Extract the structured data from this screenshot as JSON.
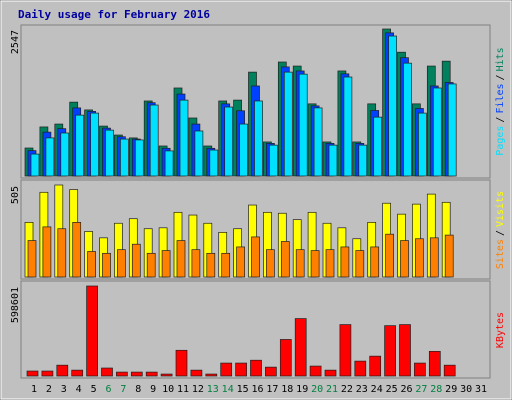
{
  "chart_data": [
    {
      "type": "bar",
      "title": "Daily usage for February 2016",
      "ylim": [
        0,
        2547
      ],
      "yticks": [
        2547
      ],
      "legend_separator": "/",
      "series": [
        {
          "name": "Hits",
          "color": "#00805c",
          "values": [
            485,
            850,
            900,
            1280,
            1145,
            865,
            710,
            660,
            1300,
            520,
            1525,
            1005,
            520,
            1300,
            1315,
            1800,
            590,
            1975,
            1905,
            1250,
            590,
            1820,
            590,
            1250,
            2547,
            2145,
            1250,
            1905,
            1990,
            null,
            null
          ]
        },
        {
          "name": "Files",
          "color": "#0040ff",
          "values": [
            440,
            760,
            820,
            1180,
            1120,
            830,
            680,
            640,
            1270,
            480,
            1420,
            900,
            480,
            1250,
            1130,
            1560,
            565,
            1890,
            1820,
            1215,
            565,
            1770,
            565,
            1135,
            2480,
            2050,
            1170,
            1560,
            1620,
            null,
            null
          ]
        },
        {
          "name": "Pages",
          "color": "#00e0ff",
          "values": [
            380,
            660,
            745,
            1055,
            1090,
            795,
            640,
            625,
            1230,
            435,
            1315,
            780,
            450,
            1195,
            900,
            1300,
            535,
            1800,
            1765,
            1180,
            535,
            1715,
            535,
            1020,
            2425,
            1955,
            1090,
            1525,
            1595,
            null,
            null
          ]
        }
      ]
    },
    {
      "type": "bar",
      "ylim": [
        0,
        505
      ],
      "yticks": [
        505
      ],
      "legend_separator": "/",
      "series": [
        {
          "name": "Visits",
          "color": "#ffff00",
          "values": [
            300,
            465,
            505,
            480,
            250,
            215,
            295,
            320,
            265,
            270,
            355,
            340,
            295,
            245,
            265,
            395,
            355,
            350,
            315,
            355,
            295,
            270,
            210,
            300,
            405,
            345,
            400,
            455,
            410,
            null,
            null
          ]
        },
        {
          "name": "Sites",
          "color": "#ff8000",
          "values": [
            200,
            275,
            265,
            300,
            140,
            130,
            150,
            180,
            130,
            145,
            200,
            150,
            130,
            130,
            165,
            220,
            150,
            195,
            150,
            145,
            150,
            165,
            145,
            165,
            235,
            200,
            210,
            215,
            230,
            null,
            null
          ]
        }
      ]
    },
    {
      "type": "bar",
      "ylim": [
        0,
        598601
      ],
      "yticks": [
        598601
      ],
      "categories": [
        "1",
        "2",
        "3",
        "4",
        "5",
        "6",
        "7",
        "8",
        "9",
        "10",
        "11",
        "12",
        "13",
        "14",
        "15",
        "16",
        "17",
        "18",
        "19",
        "20",
        "21",
        "22",
        "23",
        "24",
        "25",
        "26",
        "27",
        "28",
        "29",
        "30",
        "31"
      ],
      "label_colors": [
        "#000000",
        "#000000",
        "#000000",
        "#000000",
        "#000000",
        "#008040",
        "#008040",
        "#000000",
        "#000000",
        "#000000",
        "#000000",
        "#000000",
        "#008040",
        "#008040",
        "#000000",
        "#000000",
        "#000000",
        "#000000",
        "#000000",
        "#008040",
        "#008040",
        "#000000",
        "#000000",
        "#000000",
        "#000000",
        "#000000",
        "#008040",
        "#008040",
        "#000000",
        "#000000",
        "#000000"
      ],
      "series": [
        {
          "name": "KBytes",
          "color": "#ff0000",
          "values": [
            33000,
            33000,
            72000,
            39000,
            598601,
            53000,
            26000,
            26000,
            26000,
            13000,
            171000,
            39000,
            13000,
            86000,
            86000,
            105000,
            59000,
            243000,
            382000,
            66000,
            39000,
            342000,
            99000,
            132000,
            335000,
            342000,
            86000,
            164000,
            72000,
            null,
            null
          ]
        }
      ]
    }
  ]
}
